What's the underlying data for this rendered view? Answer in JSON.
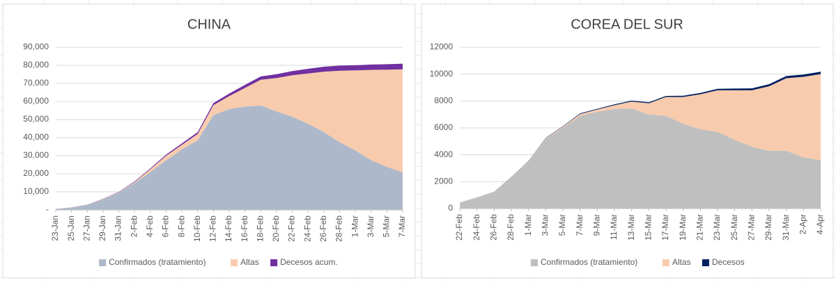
{
  "chart_data": [
    {
      "type": "stacked-area",
      "title": "CHINA",
      "categories": [
        "23-Jan",
        "25-Jan",
        "27-Jan",
        "29-Jan",
        "31-Jan",
        "2-Feb",
        "4-Feb",
        "6-Feb",
        "8-Feb",
        "10-Feb",
        "12-Feb",
        "14-Feb",
        "16-Feb",
        "18-Feb",
        "20-Feb",
        "22-Feb",
        "24-Feb",
        "26-Feb",
        "28-Feb",
        "1-Mar",
        "3-Mar",
        "5-Mar",
        "7-Mar"
      ],
      "series": [
        {
          "name": "Confirmados (tratamiento)",
          "color": "#adb9ca",
          "values": [
            500,
            1300,
            2700,
            5800,
            9500,
            15000,
            21000,
            27500,
            33500,
            38500,
            52500,
            55800,
            57200,
            57800,
            54500,
            51600,
            47700,
            43100,
            37500,
            33000,
            27500,
            23800,
            20800
          ]
        },
        {
          "name": "Altas",
          "color": "#f8cbad",
          "values": [
            50,
            50,
            100,
            200,
            300,
            500,
            1500,
            2500,
            2500,
            3500,
            5500,
            7200,
            10300,
            14200,
            18500,
            22900,
            27800,
            33400,
            39500,
            44200,
            50000,
            53800,
            57000
          ]
        },
        {
          "name": "Decesos acum.",
          "color": "#7030a0",
          "values": [
            17,
            56,
            80,
            132,
            213,
            304,
            490,
            637,
            813,
            1016,
            1113,
            1380,
            1665,
            1868,
            2118,
            2345,
            2592,
            2715,
            2835,
            2870,
            2946,
            3015,
            3097
          ]
        }
      ],
      "ylim": [
        0,
        90000
      ],
      "yticks": [
        {
          "value": 0,
          "label": "-"
        },
        {
          "value": 10000,
          "label": "10,000"
        },
        {
          "value": 20000,
          "label": "20,000"
        },
        {
          "value": 30000,
          "label": "30,000"
        },
        {
          "value": 40000,
          "label": "40,000"
        },
        {
          "value": 50000,
          "label": "50,000"
        },
        {
          "value": 60000,
          "label": "60,000"
        },
        {
          "value": 70000,
          "label": "70,000"
        },
        {
          "value": 80000,
          "label": "80,000"
        },
        {
          "value": 90000,
          "label": "90,000"
        }
      ],
      "grid": true
    },
    {
      "type": "stacked-area",
      "title": "COREA DEL SUR",
      "categories": [
        "22-Feb",
        "24-Feb",
        "26-Feb",
        "28-Feb",
        "1-Mar",
        "3-Mar",
        "5-Mar",
        "7-Mar",
        "9-Mar",
        "11-Mar",
        "13-Mar",
        "15-Mar",
        "17-Mar",
        "19-Mar",
        "21-Mar",
        "23-Mar",
        "25-Mar",
        "27-Mar",
        "29-Mar",
        "31-Mar",
        "2-Apr",
        "4-Apr"
      ],
      "series": [
        {
          "name": "Confirmados (tratamiento)",
          "color": "#bfbfbf",
          "values": [
            420,
            800,
            1200,
            2300,
            3500,
            5200,
            6000,
            6900,
            7200,
            7400,
            7450,
            7000,
            6900,
            6300,
            5900,
            5700,
            5100,
            4600,
            4300,
            4300,
            3800,
            3600
          ]
        },
        {
          "name": "Altas",
          "color": "#f8cbad",
          "values": [
            16,
            18,
            22,
            24,
            30,
            30,
            90,
            130,
            170,
            290,
            510,
            830,
            1400,
            2000,
            2600,
            3100,
            3700,
            4200,
            4800,
            5400,
            6000,
            6400
          ]
        },
        {
          "name": "Decesos",
          "color": "#002060",
          "values": [
            2,
            8,
            12,
            16,
            17,
            28,
            35,
            50,
            51,
            60,
            67,
            75,
            81,
            91,
            102,
            111,
            126,
            139,
            152,
            162,
            169,
            183
          ]
        }
      ],
      "ylim": [
        0,
        12000
      ],
      "yticks": [
        0,
        2000,
        4000,
        6000,
        8000,
        10000,
        12000
      ],
      "grid": true
    }
  ]
}
